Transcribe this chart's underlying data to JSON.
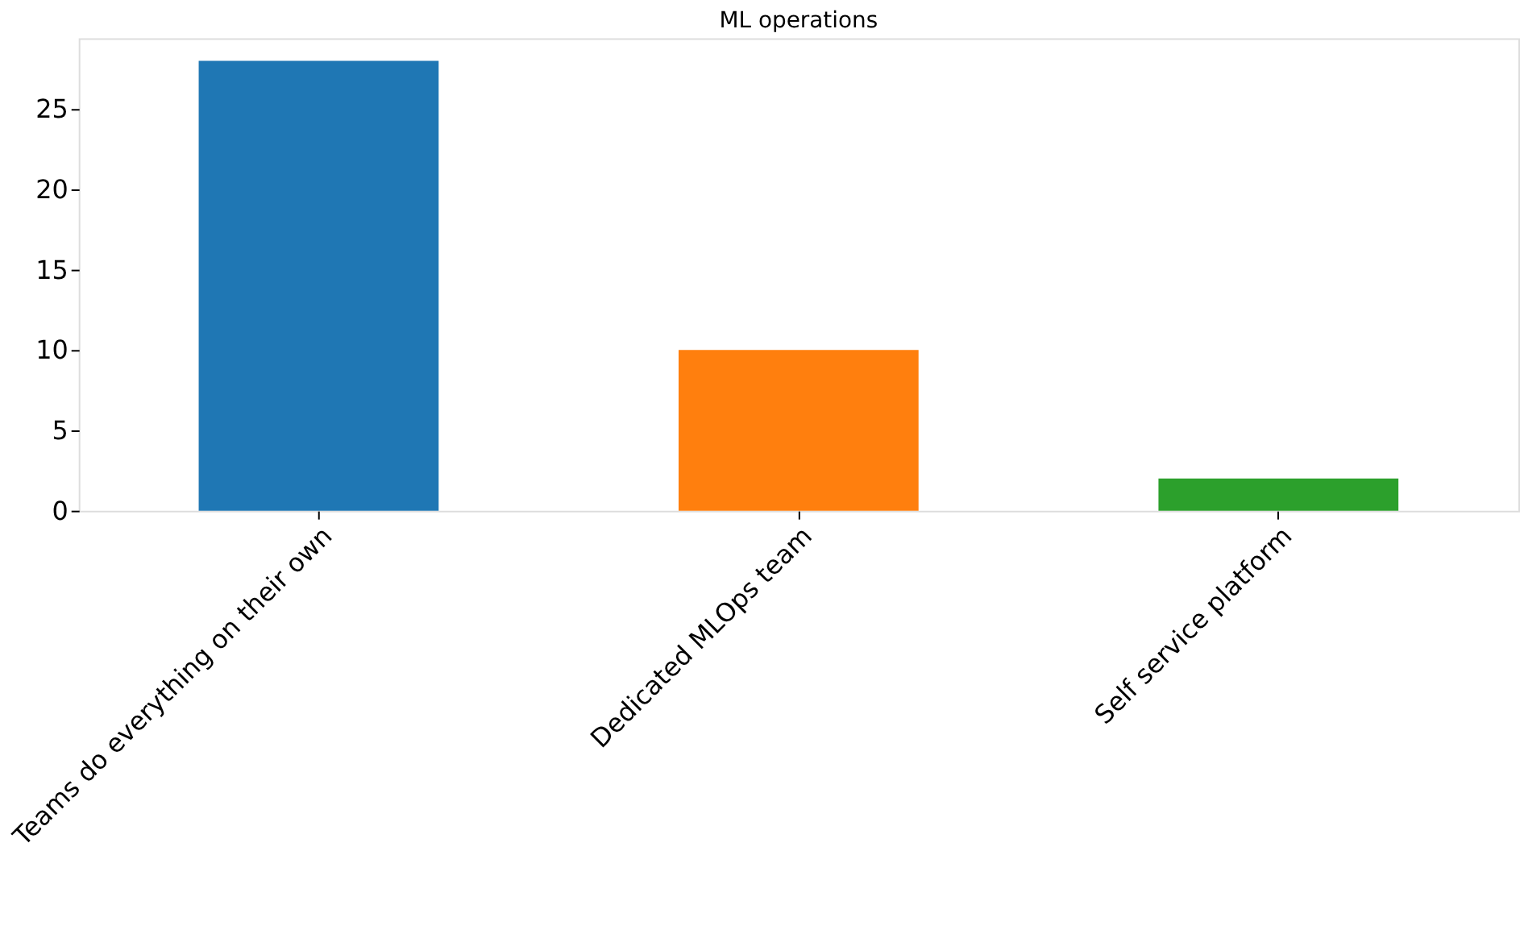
{
  "chart_data": {
    "type": "bar",
    "title": "ML operations",
    "categories": [
      "Teams do everything on their own",
      "Dedicated MLOps team",
      "Self service platform"
    ],
    "values": [
      28,
      10,
      2
    ],
    "colors": [
      "#1f77b4",
      "#ff7f0e",
      "#2ca02c"
    ],
    "ylim": [
      0,
      29.4
    ],
    "yticks": [
      0,
      5,
      10,
      15,
      20,
      25
    ],
    "grid": false,
    "legend": false
  }
}
